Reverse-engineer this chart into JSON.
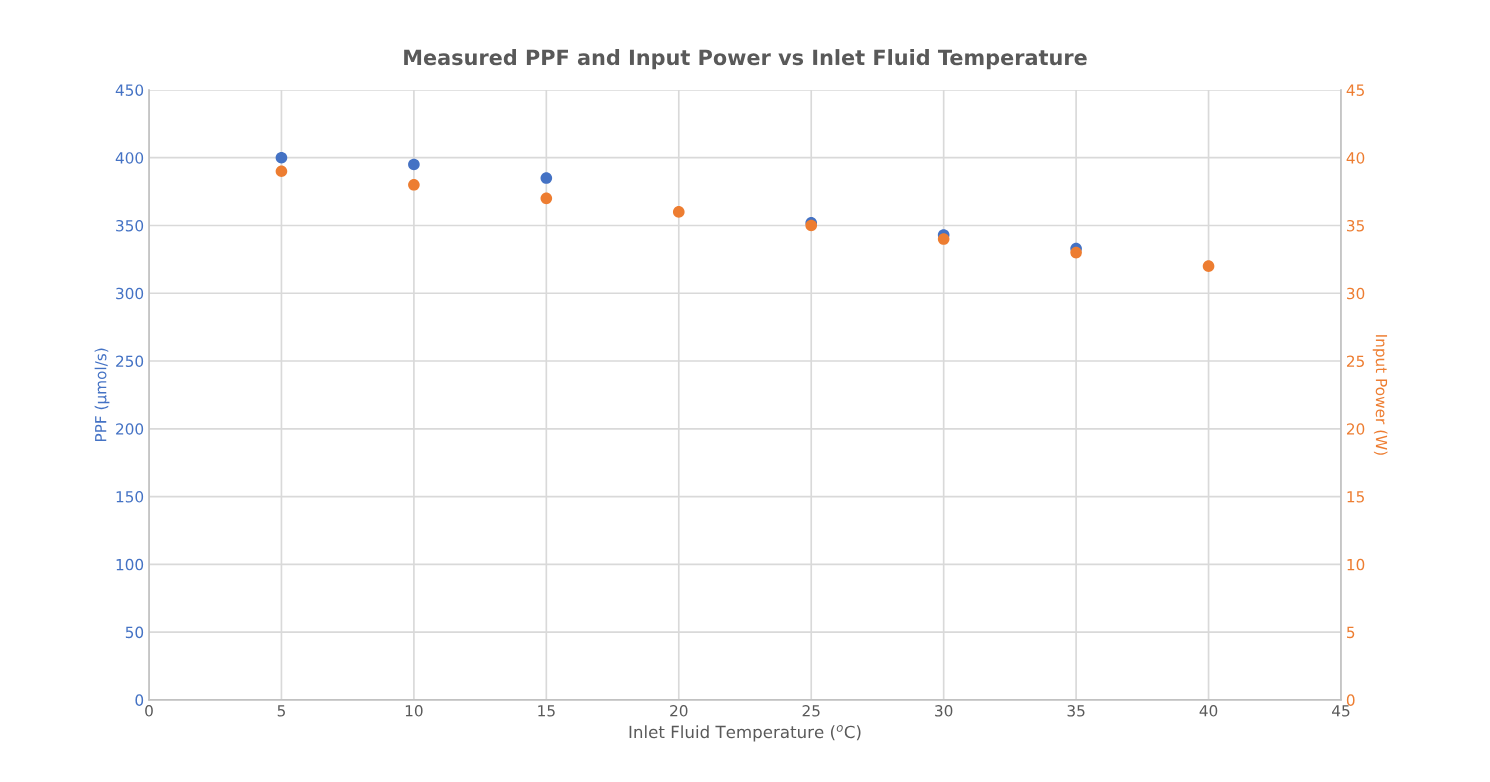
{
  "chart_data": {
    "type": "scatter",
    "title": "Measured PPF and Input Power vs Inlet Fluid Temperature",
    "xlabel": "Inlet Fluid Temperature ($^{o}$C)",
    "ylabel": "PPF (µmol/s)",
    "y2label": "Input Power (W)",
    "x": [
      5,
      10,
      15,
      20,
      25,
      30,
      35,
      40
    ],
    "series": [
      {
        "color": "#4472c4",
        "values": [
          400,
          395,
          385,
          null,
          352,
          343,
          333,
          null
        ]
      },
      {
        "color": "#ed7d31",
        "axis": "y2",
        "values": [
          39,
          38,
          37,
          36,
          35,
          34,
          33,
          32
        ]
      }
    ],
    "xlim": [
      0,
      45
    ],
    "xticks": [
      0,
      5,
      10,
      15,
      20,
      25,
      30,
      35,
      40,
      45
    ],
    "ylim": [
      0,
      450
    ],
    "yticks": [
      0,
      50,
      100,
      150,
      200,
      250,
      300,
      350,
      400,
      450
    ],
    "y2lim": [
      0,
      45
    ],
    "y2ticks": [
      0,
      5,
      10,
      15,
      20,
      25,
      30,
      35,
      40,
      45
    ],
    "grid": true,
    "marker": "circle"
  }
}
